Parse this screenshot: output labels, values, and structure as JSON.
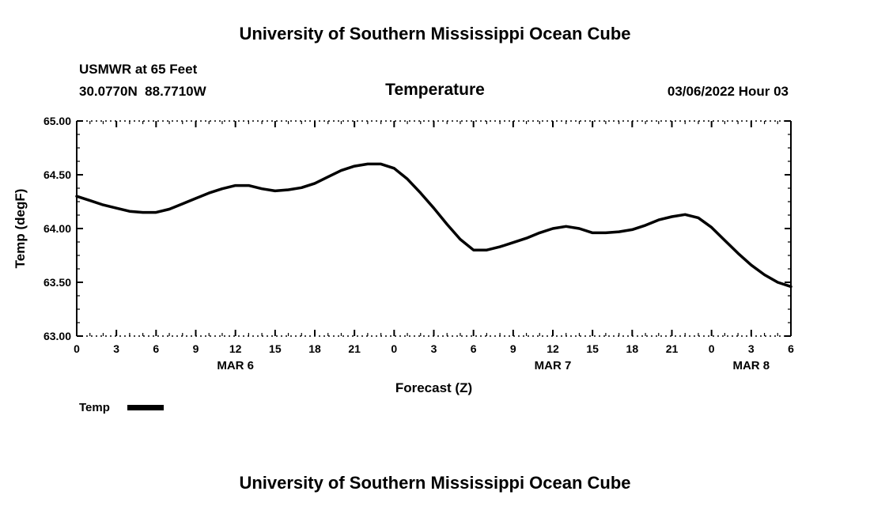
{
  "header": {
    "title": "University of Southern Mississippi Ocean Cube",
    "station": "USMWR at 65 Feet",
    "coordinates": "30.0770N  88.7710W",
    "datetime": "03/06/2022 Hour 03"
  },
  "chart_data": {
    "type": "line",
    "title": "Temperature",
    "xlabel": "Forecast (Z)",
    "ylabel": "Temp (degF)",
    "ylim": [
      63.0,
      65.0
    ],
    "y_major_ticks": [
      63.0,
      63.5,
      64.0,
      64.5,
      65.0
    ],
    "y_tick_labels": [
      "63.00",
      "63.50",
      "64.00",
      "64.50",
      "65.00"
    ],
    "x_hours_start": 0,
    "x_hours_end": 54,
    "x_tick_interval": 3,
    "x_tick_labels": [
      "0",
      "3",
      "6",
      "9",
      "12",
      "15",
      "18",
      "21",
      "0",
      "3",
      "6",
      "9",
      "12",
      "15",
      "18",
      "21",
      "0",
      "3",
      "6"
    ],
    "day_labels": [
      {
        "label": "MAR 6",
        "hour": 12
      },
      {
        "label": "MAR 7",
        "hour": 36
      },
      {
        "label": "MAR 8",
        "hour": 51
      }
    ],
    "grid": "dotted-top-bottom-frame",
    "legend_position": "below-left",
    "series": [
      {
        "name": "Temp",
        "color": "#000000",
        "x_start": 0,
        "x_step": 1,
        "values": [
          64.3,
          64.26,
          64.22,
          64.19,
          64.16,
          64.15,
          64.15,
          64.18,
          64.23,
          64.28,
          64.33,
          64.37,
          64.4,
          64.4,
          64.37,
          64.35,
          64.36,
          64.38,
          64.42,
          64.48,
          64.54,
          64.58,
          64.6,
          64.6,
          64.56,
          64.46,
          64.33,
          64.19,
          64.04,
          63.9,
          63.8,
          63.8,
          63.83,
          63.87,
          63.91,
          63.96,
          64.0,
          64.02,
          64.0,
          63.96,
          63.96,
          63.97,
          63.99,
          64.03,
          64.08,
          64.11,
          64.13,
          64.1,
          64.01,
          63.89,
          63.77,
          63.66,
          63.57,
          63.5,
          63.46
        ]
      }
    ]
  },
  "legend": {
    "label": "Temp"
  },
  "footer": {
    "title": "University of Southern Mississippi Ocean Cube"
  }
}
